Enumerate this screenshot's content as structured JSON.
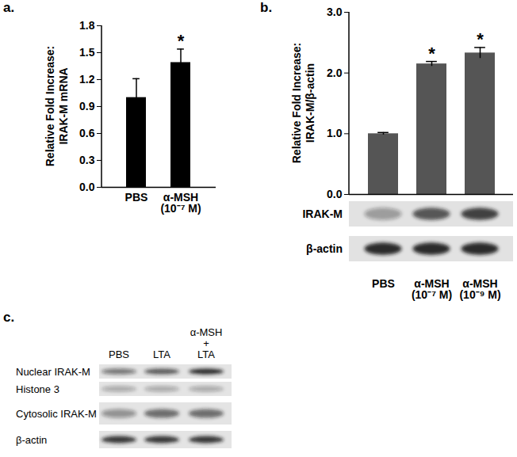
{
  "chart_data": [
    {
      "type": "bar",
      "title": "a.",
      "y_label": "Relative Fold Increase:\nIRAK-M mRNA",
      "categories": [
        "PBS",
        "α-MSH\n(10⁻⁷ M)"
      ],
      "values": [
        1.0,
        1.39
      ],
      "errors": [
        0.21,
        0.15
      ],
      "color": "#000000",
      "ylim": [
        0,
        1.8
      ],
      "yticks": [
        {
          "value": 0,
          "label": "0.0"
        },
        {
          "value": 0.3,
          "label": "0.3"
        },
        {
          "value": 0.6,
          "label": "0.6"
        },
        {
          "value": 0.9,
          "label": "0.9"
        },
        {
          "value": 1.2,
          "label": "1.2"
        },
        {
          "value": 1.5,
          "label": "1.5"
        },
        {
          "value": 1.8,
          "label": "1.8"
        }
      ],
      "annotations": [
        {
          "category": "α-MSH\n(10⁻⁷ M)",
          "text": "*"
        }
      ]
    },
    {
      "type": "bar",
      "title": "b.",
      "y_label": "Relative Fold Increase:\nIRAK-M/β-actin",
      "categories": [
        "PBS",
        "α-MSH\n(10⁻⁷ M)",
        "α-MSH\n(10⁻⁹ M)"
      ],
      "values": [
        1.0,
        2.15,
        2.33
      ],
      "errors": [
        0.02,
        0.04,
        0.09
      ],
      "color": "#555555",
      "ylim": [
        0,
        3
      ],
      "yticks": [
        {
          "value": 0,
          "label": "0.0"
        },
        {
          "value": 1,
          "label": "1.0"
        },
        {
          "value": 2,
          "label": "2.0"
        },
        {
          "value": 3,
          "label": "3.0"
        }
      ],
      "annotations": [
        {
          "category": "α-MSH\n(10⁻⁷ M)",
          "text": "*"
        },
        {
          "category": "α-MSH\n(10⁻⁹ M)",
          "text": "*"
        }
      ],
      "blots": [
        {
          "label": "IRAK-M",
          "band_intensity": [
            0.35,
            0.7,
            0.8
          ]
        },
        {
          "label": "β-actin",
          "band_intensity": [
            0.9,
            0.9,
            0.9
          ]
        }
      ]
    }
  ],
  "blot_panel": {
    "title": "c.",
    "lanes": [
      "PBS",
      "LTA",
      "α-MSH\n+\nLTA"
    ],
    "rows": [
      {
        "label": "Nuclear IRAK-M",
        "band_intensity": [
          0.55,
          0.7,
          0.95
        ]
      },
      {
        "label": "Histone 3",
        "band_intensity": [
          0.3,
          0.3,
          0.3
        ]
      },
      {
        "label": "Cytosolic IRAK-M",
        "band_intensity": [
          0.4,
          0.6,
          0.6
        ]
      },
      {
        "label": "β-actin",
        "band_intensity": [
          0.85,
          0.85,
          0.85
        ]
      }
    ]
  }
}
